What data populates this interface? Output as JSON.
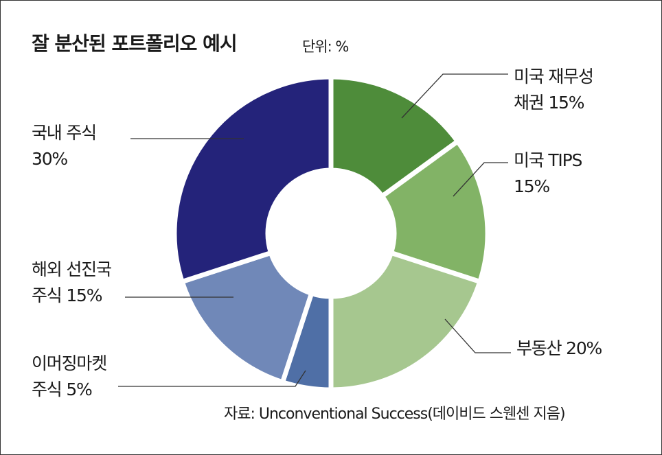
{
  "header": {
    "title": "잘 분산된 포트폴리오 예시",
    "unit": "단위: %"
  },
  "source": "자료: Unconventional Success(데이비드 스웬센 지음)",
  "chart_data": {
    "type": "pie",
    "donut": true,
    "title": "잘 분산된 포트폴리오 예시",
    "unit": "%",
    "slices": [
      {
        "name_lines": [
          "미국 재무성",
          "채권 15%"
        ],
        "value": 15,
        "color": "#4e8c3a"
      },
      {
        "name_lines": [
          "미국 TIPS",
          "15%"
        ],
        "value": 15,
        "color": "#82b366"
      },
      {
        "name_lines": [
          "부동산 20%"
        ],
        "value": 20,
        "color": "#a6c78f"
      },
      {
        "name_lines": [
          "이머징마켓",
          "주식 5%"
        ],
        "value": 5,
        "color": "#4f6fa6"
      },
      {
        "name_lines": [
          "해외 선진국",
          "주식 15%"
        ],
        "value": 15,
        "color": "#7088b8"
      },
      {
        "name_lines": [
          "국내 주식",
          "30%"
        ],
        "value": 30,
        "color": "#24237a"
      }
    ]
  }
}
